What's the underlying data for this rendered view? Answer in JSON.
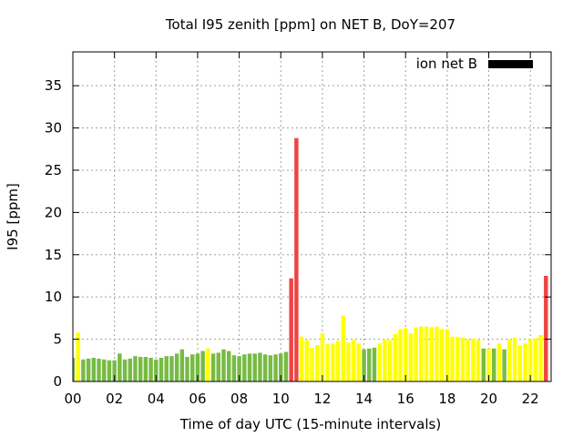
{
  "chart_data": {
    "type": "bar",
    "title": "Total I95 zenith [ppm] on NET B, DoY=207",
    "xlabel": "Time of day UTC (15-minute intervals)",
    "ylabel": "I95 [ppm]",
    "xlim": [
      0,
      23
    ],
    "ylim": [
      0,
      39
    ],
    "x_ticks": [
      {
        "value": 0,
        "label": "00"
      },
      {
        "value": 2,
        "label": "02"
      },
      {
        "value": 4,
        "label": "04"
      },
      {
        "value": 6,
        "label": "06"
      },
      {
        "value": 8,
        "label": "08"
      },
      {
        "value": 10,
        "label": "10"
      },
      {
        "value": 12,
        "label": "12"
      },
      {
        "value": 14,
        "label": "14"
      },
      {
        "value": 16,
        "label": "16"
      },
      {
        "value": 18,
        "label": "18"
      },
      {
        "value": 20,
        "label": "20"
      },
      {
        "value": 22,
        "label": "22"
      }
    ],
    "y_ticks": [
      0,
      5,
      10,
      15,
      20,
      25,
      30,
      35
    ],
    "grid": true,
    "legend": {
      "label": "ion net B",
      "color": "#000000",
      "position": "top-right"
    },
    "status_colors": {
      "green": "#77bb44",
      "yellow": "#ffff00",
      "red": "#ee4444"
    },
    "interval_hours": 0.25,
    "series": [
      {
        "name": "ion net B",
        "values": [
          {
            "x": 0.0,
            "y": 2.8,
            "status": "green"
          },
          {
            "x": 0.25,
            "y": 5.8,
            "status": "yellow"
          },
          {
            "x": 0.5,
            "y": 2.6,
            "status": "green"
          },
          {
            "x": 0.75,
            "y": 2.7,
            "status": "green"
          },
          {
            "x": 1.0,
            "y": 2.8,
            "status": "green"
          },
          {
            "x": 1.25,
            "y": 2.7,
            "status": "green"
          },
          {
            "x": 1.5,
            "y": 2.6,
            "status": "green"
          },
          {
            "x": 1.75,
            "y": 2.5,
            "status": "green"
          },
          {
            "x": 2.0,
            "y": 2.5,
            "status": "green"
          },
          {
            "x": 2.25,
            "y": 3.3,
            "status": "green"
          },
          {
            "x": 2.5,
            "y": 2.6,
            "status": "green"
          },
          {
            "x": 2.75,
            "y": 2.7,
            "status": "green"
          },
          {
            "x": 3.0,
            "y": 3.0,
            "status": "green"
          },
          {
            "x": 3.25,
            "y": 2.9,
            "status": "green"
          },
          {
            "x": 3.5,
            "y": 2.9,
            "status": "green"
          },
          {
            "x": 3.75,
            "y": 2.8,
            "status": "green"
          },
          {
            "x": 4.0,
            "y": 2.6,
            "status": "green"
          },
          {
            "x": 4.25,
            "y": 2.8,
            "status": "green"
          },
          {
            "x": 4.5,
            "y": 3.0,
            "status": "green"
          },
          {
            "x": 4.75,
            "y": 3.0,
            "status": "green"
          },
          {
            "x": 5.0,
            "y": 3.3,
            "status": "green"
          },
          {
            "x": 5.25,
            "y": 3.8,
            "status": "green"
          },
          {
            "x": 5.5,
            "y": 2.9,
            "status": "green"
          },
          {
            "x": 5.75,
            "y": 3.2,
            "status": "green"
          },
          {
            "x": 6.0,
            "y": 3.3,
            "status": "green"
          },
          {
            "x": 6.25,
            "y": 3.6,
            "status": "green"
          },
          {
            "x": 6.5,
            "y": 3.9,
            "status": "yellow"
          },
          {
            "x": 6.75,
            "y": 3.3,
            "status": "green"
          },
          {
            "x": 7.0,
            "y": 3.4,
            "status": "green"
          },
          {
            "x": 7.25,
            "y": 3.8,
            "status": "green"
          },
          {
            "x": 7.5,
            "y": 3.6,
            "status": "green"
          },
          {
            "x": 7.75,
            "y": 3.1,
            "status": "green"
          },
          {
            "x": 8.0,
            "y": 3.0,
            "status": "green"
          },
          {
            "x": 8.25,
            "y": 3.2,
            "status": "green"
          },
          {
            "x": 8.5,
            "y": 3.3,
            "status": "green"
          },
          {
            "x": 8.75,
            "y": 3.3,
            "status": "green"
          },
          {
            "x": 9.0,
            "y": 3.4,
            "status": "green"
          },
          {
            "x": 9.25,
            "y": 3.2,
            "status": "green"
          },
          {
            "x": 9.5,
            "y": 3.1,
            "status": "green"
          },
          {
            "x": 9.75,
            "y": 3.2,
            "status": "green"
          },
          {
            "x": 10.0,
            "y": 3.3,
            "status": "green"
          },
          {
            "x": 10.25,
            "y": 3.5,
            "status": "green"
          },
          {
            "x": 10.5,
            "y": 12.2,
            "status": "red"
          },
          {
            "x": 10.75,
            "y": 28.8,
            "status": "red"
          },
          {
            "x": 11.0,
            "y": 5.3,
            "status": "yellow"
          },
          {
            "x": 11.25,
            "y": 4.9,
            "status": "yellow"
          },
          {
            "x": 11.5,
            "y": 4.0,
            "status": "yellow"
          },
          {
            "x": 11.75,
            "y": 4.3,
            "status": "yellow"
          },
          {
            "x": 12.0,
            "y": 5.7,
            "status": "yellow"
          },
          {
            "x": 12.25,
            "y": 4.4,
            "status": "yellow"
          },
          {
            "x": 12.5,
            "y": 4.5,
            "status": "yellow"
          },
          {
            "x": 12.75,
            "y": 4.8,
            "status": "yellow"
          },
          {
            "x": 13.0,
            "y": 7.8,
            "status": "yellow"
          },
          {
            "x": 13.25,
            "y": 4.6,
            "status": "yellow"
          },
          {
            "x": 13.5,
            "y": 4.9,
            "status": "yellow"
          },
          {
            "x": 13.75,
            "y": 4.5,
            "status": "yellow"
          },
          {
            "x": 14.0,
            "y": 3.8,
            "status": "green"
          },
          {
            "x": 14.25,
            "y": 3.9,
            "status": "green"
          },
          {
            "x": 14.5,
            "y": 4.0,
            "status": "green"
          },
          {
            "x": 14.75,
            "y": 4.5,
            "status": "yellow"
          },
          {
            "x": 15.0,
            "y": 5.0,
            "status": "yellow"
          },
          {
            "x": 15.25,
            "y": 4.9,
            "status": "yellow"
          },
          {
            "x": 15.5,
            "y": 5.6,
            "status": "yellow"
          },
          {
            "x": 15.75,
            "y": 6.2,
            "status": "yellow"
          },
          {
            "x": 16.0,
            "y": 6.3,
            "status": "yellow"
          },
          {
            "x": 16.25,
            "y": 5.7,
            "status": "yellow"
          },
          {
            "x": 16.5,
            "y": 6.4,
            "status": "yellow"
          },
          {
            "x": 16.75,
            "y": 6.5,
            "status": "yellow"
          },
          {
            "x": 17.0,
            "y": 6.5,
            "status": "yellow"
          },
          {
            "x": 17.25,
            "y": 6.4,
            "status": "yellow"
          },
          {
            "x": 17.5,
            "y": 6.5,
            "status": "yellow"
          },
          {
            "x": 17.75,
            "y": 6.2,
            "status": "yellow"
          },
          {
            "x": 18.0,
            "y": 6.2,
            "status": "yellow"
          },
          {
            "x": 18.25,
            "y": 5.3,
            "status": "yellow"
          },
          {
            "x": 18.5,
            "y": 5.3,
            "status": "yellow"
          },
          {
            "x": 18.75,
            "y": 5.2,
            "status": "yellow"
          },
          {
            "x": 19.0,
            "y": 5.0,
            "status": "yellow"
          },
          {
            "x": 19.25,
            "y": 5.1,
            "status": "yellow"
          },
          {
            "x": 19.5,
            "y": 4.9,
            "status": "yellow"
          },
          {
            "x": 19.75,
            "y": 3.9,
            "status": "green"
          },
          {
            "x": 20.0,
            "y": 3.9,
            "status": "yellow"
          },
          {
            "x": 20.25,
            "y": 3.9,
            "status": "green"
          },
          {
            "x": 20.5,
            "y": 4.5,
            "status": "yellow"
          },
          {
            "x": 20.75,
            "y": 3.8,
            "status": "green"
          },
          {
            "x": 21.0,
            "y": 5.0,
            "status": "yellow"
          },
          {
            "x": 21.25,
            "y": 5.2,
            "status": "yellow"
          },
          {
            "x": 21.5,
            "y": 4.3,
            "status": "yellow"
          },
          {
            "x": 21.75,
            "y": 4.5,
            "status": "yellow"
          },
          {
            "x": 22.0,
            "y": 5.0,
            "status": "yellow"
          },
          {
            "x": 22.25,
            "y": 5.1,
            "status": "yellow"
          },
          {
            "x": 22.5,
            "y": 5.5,
            "status": "yellow"
          },
          {
            "x": 22.75,
            "y": 12.5,
            "status": "red"
          }
        ]
      }
    ]
  }
}
